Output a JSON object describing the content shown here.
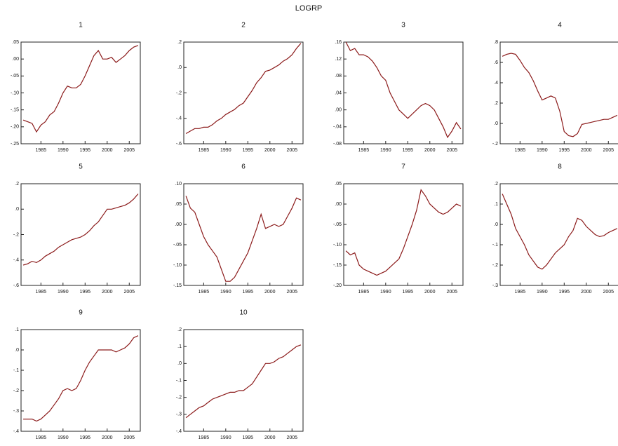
{
  "title": "LOGRP",
  "chart_data": [
    {
      "type": "line",
      "title": "1",
      "x": [
        1981,
        1982,
        1983,
        1984,
        1985,
        1986,
        1987,
        1988,
        1989,
        1990,
        1991,
        1992,
        1993,
        1994,
        1995,
        1996,
        1997,
        1998,
        1999,
        2000,
        2001,
        2002,
        2003,
        2004,
        2005,
        2006,
        2007
      ],
      "color": "#8b1a1a",
      "values": [
        -0.18,
        -0.185,
        -0.19,
        -0.215,
        -0.195,
        -0.185,
        -0.165,
        -0.155,
        -0.13,
        -0.1,
        -0.08,
        -0.085,
        -0.085,
        -0.075,
        -0.05,
        -0.02,
        0.01,
        0.025,
        0.0,
        0.0,
        0.005,
        -0.01,
        0.0,
        0.01,
        0.025,
        0.035,
        0.04
      ],
      "xlim": [
        1980.5,
        2007.5
      ],
      "xticks": [
        1985,
        1990,
        1995,
        2000,
        2005
      ],
      "ylim": [
        -0.25,
        0.05
      ],
      "yticks": [
        {
          "value": 0.05,
          "label": ".05"
        },
        {
          "value": 0,
          "label": ".00"
        },
        {
          "value": -0.05,
          "label": "-.05"
        },
        {
          "value": -0.1,
          "label": "-.10"
        },
        {
          "value": -0.15,
          "label": "-.15"
        },
        {
          "value": -0.2,
          "label": "-.20"
        },
        {
          "value": -0.25,
          "label": "-.25"
        }
      ]
    },
    {
      "type": "line",
      "title": "2",
      "x": [
        1981,
        1982,
        1983,
        1984,
        1985,
        1986,
        1987,
        1988,
        1989,
        1990,
        1991,
        1992,
        1993,
        1994,
        1995,
        1996,
        1997,
        1998,
        1999,
        2000,
        2001,
        2002,
        2003,
        2004,
        2005,
        2006,
        2007
      ],
      "color": "#8b1a1a",
      "values": [
        -0.52,
        -0.5,
        -0.48,
        -0.48,
        -0.47,
        -0.47,
        -0.45,
        -0.42,
        -0.4,
        -0.37,
        -0.35,
        -0.33,
        -0.3,
        -0.28,
        -0.23,
        -0.18,
        -0.12,
        -0.08,
        -0.03,
        -0.02,
        0.0,
        0.02,
        0.05,
        0.07,
        0.1,
        0.15,
        0.19
      ],
      "xlim": [
        1980.5,
        2007.5
      ],
      "xticks": [
        1985,
        1990,
        1995,
        2000,
        2005
      ],
      "ylim": [
        -0.6,
        0.2
      ],
      "yticks": [
        {
          "value": 0.2,
          "label": ".2"
        },
        {
          "value": 0,
          "label": ".0"
        },
        {
          "value": -0.2,
          "label": "-.2"
        },
        {
          "value": -0.4,
          "label": "-.4"
        },
        {
          "value": -0.6,
          "label": "-.6"
        }
      ]
    },
    {
      "type": "line",
      "title": "3",
      "x": [
        1981,
        1982,
        1983,
        1984,
        1985,
        1986,
        1987,
        1988,
        1989,
        1990,
        1991,
        1992,
        1993,
        1994,
        1995,
        1996,
        1997,
        1998,
        1999,
        2000,
        2001,
        2002,
        2003,
        2004,
        2005,
        2006,
        2007
      ],
      "color": "#8b1a1a",
      "values": [
        0.16,
        0.14,
        0.145,
        0.13,
        0.13,
        0.125,
        0.115,
        0.1,
        0.08,
        0.07,
        0.04,
        0.02,
        0.0,
        -0.01,
        -0.02,
        -0.01,
        0.0,
        0.01,
        0.015,
        0.01,
        0.0,
        -0.02,
        -0.04,
        -0.065,
        -0.05,
        -0.03,
        -0.045
      ],
      "xlim": [
        1980.5,
        2007.5
      ],
      "xticks": [
        1985,
        1990,
        1995,
        2000,
        2005
      ],
      "ylim": [
        -0.08,
        0.16
      ],
      "yticks": [
        {
          "value": 0.16,
          "label": ".16"
        },
        {
          "value": 0.12,
          "label": ".12"
        },
        {
          "value": 0.08,
          "label": ".08"
        },
        {
          "value": 0.04,
          "label": ".04"
        },
        {
          "value": 0,
          "label": ".00"
        },
        {
          "value": -0.04,
          "label": "-.04"
        },
        {
          "value": -0.08,
          "label": "-.08"
        }
      ]
    },
    {
      "type": "line",
      "title": "4",
      "x": [
        1981,
        1982,
        1983,
        1984,
        1985,
        1986,
        1987,
        1988,
        1989,
        1990,
        1991,
        1992,
        1993,
        1994,
        1995,
        1996,
        1997,
        1998,
        1999,
        2000,
        2001,
        2002,
        2003,
        2004,
        2005,
        2006,
        2007
      ],
      "color": "#8b1a1a",
      "values": [
        0.66,
        0.68,
        0.69,
        0.68,
        0.62,
        0.55,
        0.5,
        0.42,
        0.32,
        0.23,
        0.25,
        0.27,
        0.25,
        0.12,
        -0.08,
        -0.12,
        -0.13,
        -0.1,
        -0.01,
        0.0,
        0.01,
        0.02,
        0.03,
        0.04,
        0.04,
        0.06,
        0.08
      ],
      "xlim": [
        1980.5,
        2007.5
      ],
      "xticks": [
        1985,
        1990,
        1995,
        2000,
        2005
      ],
      "ylim": [
        -0.2,
        0.8
      ],
      "yticks": [
        {
          "value": 0.8,
          "label": ".8"
        },
        {
          "value": 0.6,
          "label": ".6"
        },
        {
          "value": 0.4,
          "label": ".4"
        },
        {
          "value": 0.2,
          "label": ".2"
        },
        {
          "value": 0,
          "label": ".0"
        },
        {
          "value": -0.2,
          "label": "-.2"
        }
      ]
    },
    {
      "type": "line",
      "title": "5",
      "x": [
        1981,
        1982,
        1983,
        1984,
        1985,
        1986,
        1987,
        1988,
        1989,
        1990,
        1991,
        1992,
        1993,
        1994,
        1995,
        1996,
        1997,
        1998,
        1999,
        2000,
        2001,
        2002,
        2003,
        2004,
        2005,
        2006,
        2007
      ],
      "color": "#8b1a1a",
      "values": [
        -0.44,
        -0.43,
        -0.41,
        -0.42,
        -0.4,
        -0.37,
        -0.35,
        -0.33,
        -0.3,
        -0.28,
        -0.26,
        -0.24,
        -0.23,
        -0.22,
        -0.2,
        -0.17,
        -0.13,
        -0.1,
        -0.05,
        0.0,
        0.0,
        0.01,
        0.02,
        0.03,
        0.05,
        0.08,
        0.12
      ],
      "xlim": [
        1980.5,
        2007.5
      ],
      "xticks": [
        1985,
        1990,
        1995,
        2000,
        2005
      ],
      "ylim": [
        -0.6,
        0.2
      ],
      "yticks": [
        {
          "value": 0.2,
          "label": ".2"
        },
        {
          "value": 0,
          "label": ".0"
        },
        {
          "value": -0.2,
          "label": "-.2"
        },
        {
          "value": -0.4,
          "label": "-.4"
        },
        {
          "value": -0.6,
          "label": "-.6"
        }
      ]
    },
    {
      "type": "line",
      "title": "6",
      "x": [
        1981,
        1982,
        1983,
        1984,
        1985,
        1986,
        1987,
        1988,
        1989,
        1990,
        1991,
        1992,
        1993,
        1994,
        1995,
        1996,
        1997,
        1998,
        1999,
        2000,
        2001,
        2002,
        2003,
        2004,
        2005,
        2006,
        2007
      ],
      "color": "#8b1a1a",
      "values": [
        0.07,
        0.04,
        0.03,
        0.0,
        -0.03,
        -0.05,
        -0.065,
        -0.08,
        -0.11,
        -0.14,
        -0.14,
        -0.13,
        -0.11,
        -0.09,
        -0.07,
        -0.04,
        -0.01,
        0.025,
        -0.01,
        -0.005,
        0.0,
        -0.005,
        0.0,
        0.02,
        0.04,
        0.065,
        0.06
      ],
      "xlim": [
        1980.5,
        2007.5
      ],
      "xticks": [
        1985,
        1990,
        1995,
        2000,
        2005
      ],
      "ylim": [
        -0.15,
        0.1
      ],
      "yticks": [
        {
          "value": 0.1,
          "label": ".10"
        },
        {
          "value": 0.05,
          "label": ".05"
        },
        {
          "value": 0,
          "label": ".00"
        },
        {
          "value": -0.05,
          "label": "-.05"
        },
        {
          "value": -0.1,
          "label": "-.10"
        },
        {
          "value": -0.15,
          "label": "-.15"
        }
      ]
    },
    {
      "type": "line",
      "title": "7",
      "x": [
        1981,
        1982,
        1983,
        1984,
        1985,
        1986,
        1987,
        1988,
        1989,
        1990,
        1991,
        1992,
        1993,
        1994,
        1995,
        1996,
        1997,
        1998,
        1999,
        2000,
        2001,
        2002,
        2003,
        2004,
        2005,
        2006,
        2007
      ],
      "color": "#8b1a1a",
      "values": [
        -0.115,
        -0.125,
        -0.12,
        -0.15,
        -0.16,
        -0.165,
        -0.17,
        -0.175,
        -0.17,
        -0.165,
        -0.155,
        -0.145,
        -0.135,
        -0.11,
        -0.08,
        -0.05,
        -0.015,
        0.035,
        0.02,
        0.0,
        -0.01,
        -0.02,
        -0.025,
        -0.02,
        -0.01,
        0.0,
        -0.005
      ],
      "xlim": [
        1980.5,
        2007.5
      ],
      "xticks": [
        1985,
        1990,
        1995,
        2000,
        2005
      ],
      "ylim": [
        -0.2,
        0.05
      ],
      "yticks": [
        {
          "value": 0.05,
          "label": ".05"
        },
        {
          "value": 0,
          "label": ".00"
        },
        {
          "value": -0.05,
          "label": "-.05"
        },
        {
          "value": -0.1,
          "label": "-.10"
        },
        {
          "value": -0.15,
          "label": "-.15"
        },
        {
          "value": -0.2,
          "label": "-.20"
        }
      ]
    },
    {
      "type": "line",
      "title": "8",
      "x": [
        1981,
        1982,
        1983,
        1984,
        1985,
        1986,
        1987,
        1988,
        1989,
        1990,
        1991,
        1992,
        1993,
        1994,
        1995,
        1996,
        1997,
        1998,
        1999,
        2000,
        2001,
        2002,
        2003,
        2004,
        2005,
        2006,
        2007
      ],
      "color": "#8b1a1a",
      "values": [
        0.15,
        0.1,
        0.05,
        -0.02,
        -0.06,
        -0.1,
        -0.15,
        -0.18,
        -0.21,
        -0.22,
        -0.2,
        -0.17,
        -0.14,
        -0.12,
        -0.1,
        -0.06,
        -0.03,
        0.03,
        0.02,
        -0.01,
        -0.03,
        -0.05,
        -0.06,
        -0.055,
        -0.04,
        -0.03,
        -0.02
      ],
      "xlim": [
        1980.5,
        2007.5
      ],
      "xticks": [
        1985,
        1990,
        1995,
        2000,
        2005
      ],
      "ylim": [
        -0.3,
        0.2
      ],
      "yticks": [
        {
          "value": 0.2,
          "label": ".2"
        },
        {
          "value": 0.1,
          "label": ".1"
        },
        {
          "value": 0,
          "label": ".0"
        },
        {
          "value": -0.1,
          "label": "-.1"
        },
        {
          "value": -0.2,
          "label": "-.2"
        },
        {
          "value": -0.3,
          "label": "-.3"
        }
      ]
    },
    {
      "type": "line",
      "title": "9",
      "x": [
        1981,
        1982,
        1983,
        1984,
        1985,
        1986,
        1987,
        1988,
        1989,
        1990,
        1991,
        1992,
        1993,
        1994,
        1995,
        1996,
        1997,
        1998,
        1999,
        2000,
        2001,
        2002,
        2003,
        2004,
        2005,
        2006,
        2007
      ],
      "color": "#8b1a1a",
      "values": [
        -0.34,
        -0.34,
        -0.34,
        -0.35,
        -0.34,
        -0.32,
        -0.3,
        -0.27,
        -0.24,
        -0.2,
        -0.19,
        -0.2,
        -0.19,
        -0.15,
        -0.1,
        -0.06,
        -0.03,
        0.0,
        0.0,
        0.0,
        0.0,
        -0.01,
        0.0,
        0.01,
        0.03,
        0.06,
        0.07
      ],
      "xlim": [
        1980.5,
        2007.5
      ],
      "xticks": [
        1985,
        1990,
        1995,
        2000,
        2005
      ],
      "ylim": [
        -0.4,
        0.1
      ],
      "yticks": [
        {
          "value": 0.1,
          "label": ".1"
        },
        {
          "value": 0,
          "label": ".0"
        },
        {
          "value": -0.1,
          "label": "-.1"
        },
        {
          "value": -0.2,
          "label": "-.2"
        },
        {
          "value": -0.3,
          "label": "-.3"
        },
        {
          "value": -0.4,
          "label": "-.4"
        }
      ]
    },
    {
      "type": "line",
      "title": "10",
      "x": [
        1981,
        1982,
        1983,
        1984,
        1985,
        1986,
        1987,
        1988,
        1989,
        1990,
        1991,
        1992,
        1993,
        1994,
        1995,
        1996,
        1997,
        1998,
        1999,
        2000,
        2001,
        2002,
        2003,
        2004,
        2005,
        2006,
        2007
      ],
      "color": "#8b1a1a",
      "values": [
        -0.32,
        -0.3,
        -0.28,
        -0.26,
        -0.25,
        -0.23,
        -0.21,
        -0.2,
        -0.19,
        -0.18,
        -0.17,
        -0.17,
        -0.16,
        -0.16,
        -0.14,
        -0.12,
        -0.08,
        -0.04,
        0.0,
        0.0,
        0.01,
        0.03,
        0.04,
        0.06,
        0.08,
        0.1,
        0.11
      ],
      "xlim": [
        1980.5,
        2007.5
      ],
      "xticks": [
        1985,
        1990,
        1995,
        2000,
        2005
      ],
      "ylim": [
        -0.4,
        0.2
      ],
      "yticks": [
        {
          "value": 0.2,
          "label": ".2"
        },
        {
          "value": 0.1,
          "label": ".1"
        },
        {
          "value": 0,
          "label": ".0"
        },
        {
          "value": -0.1,
          "label": "-.1"
        },
        {
          "value": -0.2,
          "label": "-.2"
        },
        {
          "value": -0.3,
          "label": "-.3"
        },
        {
          "value": -0.4,
          "label": "-.4"
        }
      ]
    }
  ]
}
